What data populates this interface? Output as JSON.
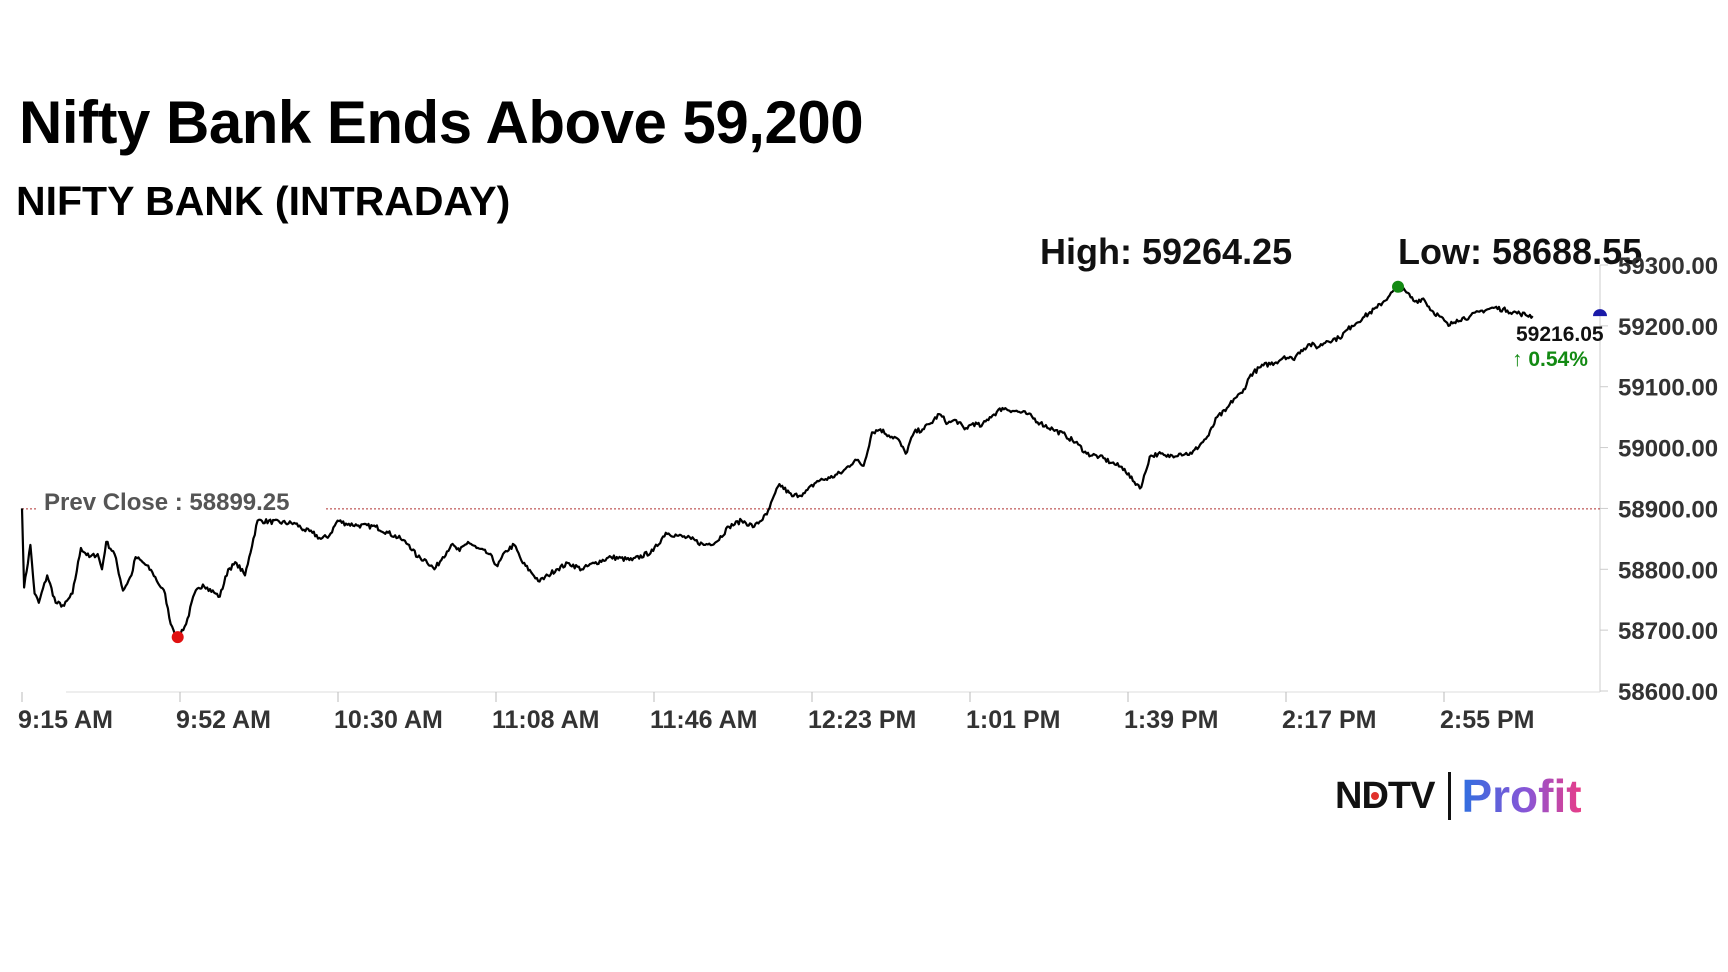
{
  "headline": "Nifty Bank Ends Above 59,200",
  "subtitle": "NIFTY BANK (INTRADAY)",
  "logo": {
    "primary": "NDTV",
    "secondary": "Profit"
  },
  "colors": {
    "line": "#000000",
    "prev_close_line": "#b03030",
    "high_marker": "#138a13",
    "low_marker": "#e01010",
    "last_marker": "#1a1aa8",
    "positive": "#138a13"
  },
  "chart_data": {
    "type": "line",
    "title": "NIFTY BANK (INTRADAY)",
    "high_label": "High: 59264.25",
    "low_label": "Low: 58688.55",
    "high": 59264.25,
    "low": 58688.55,
    "prev_close": 58899.25,
    "prev_close_label": "Prev Close : 58899.25",
    "last": 59216.05,
    "last_label": "59216.05",
    "change_label": "↑ 0.54%",
    "ylim": [
      58600,
      59300
    ],
    "y_ticks": [
      "59300.00",
      "59200.00",
      "59100.00",
      "59000.00",
      "58900.00",
      "58800.00",
      "58700.00",
      "58600.00"
    ],
    "x_ticks": [
      "9:15 AM",
      "9:52 AM",
      "10:30 AM",
      "11:08 AM",
      "11:46 AM",
      "12:23 PM",
      "1:01 PM",
      "1:39 PM",
      "2:17 PM",
      "2:55 PM"
    ],
    "x_range_minutes": [
      0,
      375
    ],
    "series": [
      {
        "name": "NIFTY BANK",
        "points": [
          [
            0,
            58900
          ],
          [
            0.5,
            58770
          ],
          [
            2,
            58840
          ],
          [
            3,
            58760
          ],
          [
            4,
            58745
          ],
          [
            6,
            58790
          ],
          [
            8,
            58745
          ],
          [
            10,
            58740
          ],
          [
            12,
            58760
          ],
          [
            14,
            58835
          ],
          [
            16,
            58820
          ],
          [
            18,
            58825
          ],
          [
            19,
            58800
          ],
          [
            20,
            58845
          ],
          [
            22,
            58825
          ],
          [
            24,
            58765
          ],
          [
            26,
            58790
          ],
          [
            27,
            58820
          ],
          [
            29,
            58810
          ],
          [
            31,
            58795
          ],
          [
            33,
            58770
          ],
          [
            34,
            58760
          ],
          [
            35,
            58720
          ],
          [
            36,
            58700
          ],
          [
            37,
            58688.55
          ],
          [
            39,
            58710
          ],
          [
            41,
            58760
          ],
          [
            43,
            58775
          ],
          [
            44,
            58770
          ],
          [
            46,
            58760
          ],
          [
            47,
            58755
          ],
          [
            49,
            58800
          ],
          [
            51,
            58810
          ],
          [
            53,
            58790
          ],
          [
            54,
            58820
          ],
          [
            56,
            58880
          ],
          [
            65,
            58875
          ],
          [
            67,
            58865
          ],
          [
            69,
            58860
          ],
          [
            71,
            58850
          ],
          [
            73,
            58855
          ],
          [
            75,
            58880
          ],
          [
            77,
            58875
          ],
          [
            80,
            58872
          ],
          [
            84,
            58870
          ],
          [
            87,
            58860
          ],
          [
            90,
            58850
          ],
          [
            92,
            58840
          ],
          [
            94,
            58820
          ],
          [
            96,
            58815
          ],
          [
            98,
            58800
          ],
          [
            100,
            58820
          ],
          [
            102,
            58840
          ],
          [
            104,
            58830
          ],
          [
            106,
            58845
          ],
          [
            108,
            58835
          ],
          [
            111,
            58825
          ],
          [
            113,
            58805
          ],
          [
            115,
            58830
          ],
          [
            117,
            58840
          ],
          [
            119,
            58810
          ],
          [
            121,
            58795
          ],
          [
            123,
            58780
          ],
          [
            125,
            58790
          ],
          [
            127,
            58800
          ],
          [
            130,
            58810
          ],
          [
            133,
            58800
          ],
          [
            136,
            58810
          ],
          [
            140,
            58820
          ],
          [
            145,
            58815
          ],
          [
            150,
            58830
          ],
          [
            153,
            58860
          ],
          [
            156,
            58855
          ],
          [
            159,
            58850
          ],
          [
            162,
            58840
          ],
          [
            165,
            58845
          ],
          [
            168,
            58870
          ],
          [
            171,
            58880
          ],
          [
            174,
            58870
          ],
          [
            177,
            58890
          ],
          [
            180,
            58940
          ],
          [
            183,
            58920
          ],
          [
            186,
            58925
          ],
          [
            189,
            58945
          ],
          [
            192,
            58950
          ],
          [
            195,
            58960
          ],
          [
            198,
            58980
          ],
          [
            200,
            58970
          ],
          [
            202,
            59025
          ],
          [
            204,
            59030
          ],
          [
            206,
            59020
          ],
          [
            208,
            59015
          ],
          [
            210,
            58990
          ],
          [
            212,
            59025
          ],
          [
            214,
            59030
          ],
          [
            216,
            59040
          ],
          [
            218,
            59055
          ],
          [
            220,
            59040
          ],
          [
            222,
            59045
          ],
          [
            224,
            59030
          ],
          [
            226,
            59040
          ],
          [
            228,
            59035
          ],
          [
            230,
            59050
          ],
          [
            233,
            59065
          ],
          [
            236,
            59060
          ],
          [
            239,
            59055
          ],
          [
            242,
            59040
          ],
          [
            245,
            59030
          ],
          [
            248,
            59020
          ],
          [
            251,
            59005
          ],
          [
            253,
            58990
          ],
          [
            256,
            58985
          ],
          [
            259,
            58975
          ],
          [
            262,
            58965
          ],
          [
            264,
            58945
          ],
          [
            266,
            58935
          ],
          [
            268,
            58985
          ],
          [
            270,
            58990
          ],
          [
            272,
            58985
          ],
          [
            275,
            58990
          ],
          [
            278,
            58990
          ],
          [
            280,
            59005
          ],
          [
            282,
            59020
          ],
          [
            284,
            59050
          ],
          [
            286,
            59060
          ],
          [
            288,
            59080
          ],
          [
            290,
            59090
          ],
          [
            292,
            59120
          ],
          [
            295,
            59135
          ],
          [
            298,
            59140
          ],
          [
            300,
            59150
          ],
          [
            302,
            59145
          ],
          [
            304,
            59160
          ],
          [
            306,
            59170
          ],
          [
            308,
            59165
          ],
          [
            310,
            59175
          ],
          [
            313,
            59180
          ],
          [
            316,
            59200
          ],
          [
            319,
            59215
          ],
          [
            322,
            59230
          ],
          [
            325,
            59250
          ],
          [
            327,
            59264.25
          ],
          [
            329,
            59255
          ],
          [
            331,
            59240
          ],
          [
            333,
            59245
          ],
          [
            335,
            59225
          ],
          [
            337,
            59215
          ],
          [
            339,
            59200
          ],
          [
            341,
            59210
          ],
          [
            344,
            59215
          ],
          [
            347,
            59225
          ],
          [
            350,
            59230
          ],
          [
            353,
            59225
          ],
          [
            356,
            59220
          ],
          [
            359,
            59216.05
          ]
        ]
      }
    ],
    "markers": {
      "high_time": 327,
      "low_time": 37,
      "last_time": 375
    }
  }
}
